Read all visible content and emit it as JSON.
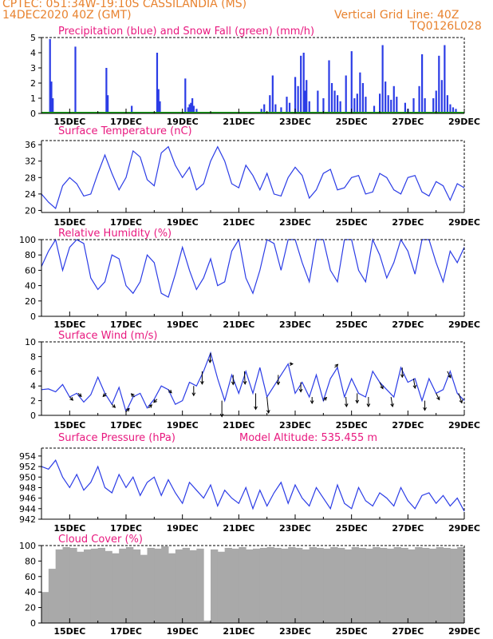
{
  "header": {
    "line1": "CPTEC:   051:34W-19:10S   CASSILANDIA (MS)",
    "line2": "14DEC2020 40Z (GMT)",
    "grid_note": "Vertical Grid Line: 40Z",
    "code": "TQ0126L028"
  },
  "colors": {
    "header": "#e8822e",
    "title": "#e8197f",
    "series": "#2b3ce6",
    "snow": "#1aa01a",
    "cloud": "#a9a9a9",
    "wind_arrow": "#000000"
  },
  "x_axis": {
    "start": "14DEC2020 00Z",
    "end": "29DEC2020 00Z",
    "ticks": [
      "15DEC",
      "17DEC",
      "19DEC",
      "21DEC",
      "23DEC",
      "25DEC",
      "27DEC",
      "29DEC"
    ],
    "tick_days": [
      1,
      3,
      5,
      7,
      9,
      11,
      13,
      15
    ]
  },
  "chart_data": [
    {
      "type": "bar",
      "title": "Precipitation (blue) and Snow Fall (green) (mm/h)",
      "ylim": [
        0,
        5
      ],
      "yticks": [
        0,
        1,
        2,
        3,
        4,
        5
      ],
      "series": [
        {
          "name": "Precipitation",
          "x": [
            0.3,
            0.35,
            0.4,
            1.2,
            2.3,
            2.35,
            3.2,
            4.1,
            4.15,
            4.2,
            5.1,
            5.2,
            5.25,
            5.3,
            5.35,
            5.4,
            5.5,
            7.8,
            7.9,
            8.1,
            8.2,
            8.3,
            8.5,
            8.7,
            8.8,
            9.0,
            9.1,
            9.2,
            9.3,
            9.35,
            9.4,
            9.5,
            9.8,
            10.0,
            10.2,
            10.3,
            10.4,
            10.5,
            10.6,
            10.8,
            11.0,
            11.1,
            11.2,
            11.3,
            11.4,
            11.5,
            11.8,
            12.0,
            12.1,
            12.2,
            12.3,
            12.4,
            12.5,
            12.6,
            12.9,
            13.0,
            13.2,
            13.4,
            13.5,
            13.6,
            13.9,
            14.0,
            14.1,
            14.2,
            14.3,
            14.4,
            14.5,
            14.6,
            14.7
          ],
          "values": [
            4.9,
            2.1,
            1.0,
            4.4,
            3.0,
            1.2,
            0.5,
            4.0,
            1.6,
            0.8,
            2.3,
            0.4,
            0.6,
            0.7,
            1.0,
            0.5,
            0.3,
            0.3,
            0.6,
            1.2,
            2.5,
            0.6,
            0.4,
            1.1,
            0.7,
            2.4,
            1.8,
            3.8,
            4.0,
            1.5,
            2.2,
            0.8,
            1.5,
            1.0,
            3.5,
            2.0,
            1.5,
            1.2,
            0.8,
            2.5,
            4.1,
            1.0,
            1.3,
            2.7,
            2.0,
            1.1,
            0.5,
            1.3,
            4.5,
            2.1,
            1.2,
            0.9,
            1.8,
            1.1,
            0.7,
            0.3,
            1.0,
            1.8,
            3.9,
            1.0,
            1.0,
            1.5,
            3.8,
            2.2,
            4.5,
            1.2,
            0.6,
            0.4,
            0.3
          ]
        },
        {
          "name": "Snow Fall",
          "x": [],
          "values": []
        }
      ]
    },
    {
      "type": "line",
      "title": "Surface Temperature (nC)",
      "ylim": [
        19.5,
        37
      ],
      "yticks": [
        20,
        24,
        28,
        32,
        36
      ],
      "series": [
        {
          "name": "Temperature",
          "x": [
            0,
            0.25,
            0.5,
            0.75,
            1,
            1.25,
            1.5,
            1.75,
            2,
            2.25,
            2.5,
            2.75,
            3,
            3.25,
            3.5,
            3.75,
            4,
            4.25,
            4.5,
            4.75,
            5,
            5.25,
            5.5,
            5.75,
            6,
            6.25,
            6.5,
            6.75,
            7,
            7.25,
            7.5,
            7.75,
            8,
            8.25,
            8.5,
            8.75,
            9,
            9.25,
            9.5,
            9.75,
            10,
            10.25,
            10.5,
            10.75,
            11,
            11.25,
            11.5,
            11.75,
            12,
            12.25,
            12.5,
            12.75,
            13,
            13.25,
            13.5,
            13.75,
            14,
            14.25,
            14.5,
            14.75,
            15
          ],
          "values": [
            24,
            22,
            20.5,
            26,
            28,
            26.5,
            23.5,
            24,
            29,
            33.5,
            29,
            25,
            28,
            34.5,
            33,
            27.5,
            26,
            34,
            35.5,
            31,
            28,
            30.5,
            25,
            26.5,
            32,
            35.5,
            32,
            26.5,
            25.5,
            31,
            28.5,
            25,
            29,
            24,
            23.5,
            28,
            30.5,
            28.5,
            23,
            25,
            29,
            30,
            25,
            25.5,
            28,
            28.5,
            24,
            24.5,
            29,
            28,
            25,
            24,
            28,
            28.5,
            24.5,
            23.5,
            27,
            26,
            22.5,
            26.5,
            25.5
          ]
        }
      ]
    },
    {
      "type": "line",
      "title": "Relative Humidity (%)",
      "ylim": [
        0,
        100
      ],
      "yticks": [
        0,
        20,
        40,
        60,
        80,
        100
      ],
      "series": [
        {
          "name": "Relative Humidity",
          "x": [
            0,
            0.25,
            0.5,
            0.75,
            1,
            1.25,
            1.5,
            1.75,
            2,
            2.25,
            2.5,
            2.75,
            3,
            3.25,
            3.5,
            3.75,
            4,
            4.25,
            4.5,
            4.75,
            5,
            5.25,
            5.5,
            5.75,
            6,
            6.25,
            6.5,
            6.75,
            7,
            7.25,
            7.5,
            7.75,
            8,
            8.25,
            8.5,
            8.75,
            9,
            9.25,
            9.5,
            9.75,
            10,
            10.25,
            10.5,
            10.75,
            11,
            11.25,
            11.5,
            11.75,
            12,
            12.25,
            12.5,
            12.75,
            13,
            13.25,
            13.5,
            13.75,
            14,
            14.25,
            14.5,
            14.75,
            15
          ],
          "values": [
            65,
            85,
            100,
            60,
            90,
            100,
            95,
            50,
            35,
            45,
            80,
            75,
            40,
            30,
            45,
            80,
            70,
            30,
            25,
            55,
            90,
            60,
            35,
            50,
            75,
            40,
            45,
            85,
            100,
            50,
            30,
            60,
            100,
            95,
            60,
            100,
            100,
            70,
            45,
            100,
            100,
            60,
            45,
            100,
            100,
            60,
            45,
            100,
            80,
            50,
            70,
            100,
            85,
            55,
            100,
            100,
            70,
            45,
            85,
            70,
            90
          ]
        }
      ]
    },
    {
      "type": "line",
      "title": "Surface Wind (m/s)",
      "ylim": [
        0,
        10
      ],
      "yticks": [
        0,
        2,
        4,
        6,
        8,
        10
      ],
      "series": [
        {
          "name": "Wind Speed",
          "x": [
            0,
            0.25,
            0.5,
            0.75,
            1,
            1.25,
            1.5,
            1.75,
            2,
            2.25,
            2.5,
            2.75,
            3,
            3.25,
            3.5,
            3.75,
            4,
            4.25,
            4.5,
            4.75,
            5,
            5.25,
            5.5,
            5.75,
            6,
            6.25,
            6.5,
            6.75,
            7,
            7.25,
            7.5,
            7.75,
            8,
            8.25,
            8.5,
            8.75,
            9,
            9.25,
            9.5,
            9.75,
            10,
            10.25,
            10.5,
            10.75,
            11,
            11.25,
            11.5,
            11.75,
            12,
            12.25,
            12.5,
            12.75,
            13,
            13.25,
            13.5,
            13.75,
            14,
            14.25,
            14.5,
            14.75,
            15
          ],
          "values": [
            3.5,
            3.6,
            3.2,
            4.2,
            2.5,
            3.0,
            1.8,
            2.8,
            5.2,
            3.0,
            1.5,
            3.8,
            0.5,
            2.5,
            3.0,
            1.0,
            2.2,
            4.0,
            3.5,
            1.5,
            2.0,
            4.5,
            4.0,
            6.0,
            8.5,
            5.0,
            2.0,
            5.5,
            3.0,
            6.0,
            3.0,
            6.5,
            2.5,
            4.0,
            5.5,
            7.0,
            3.0,
            4.5,
            2.5,
            5.5,
            2.0,
            5.0,
            6.5,
            2.5,
            5.0,
            3.0,
            2.5,
            6.0,
            4.5,
            3.5,
            2.5,
            6.5,
            4.5,
            5.0,
            2.0,
            5.0,
            3.0,
            3.5,
            6.0,
            3.0,
            2.0
          ]
        }
      ],
      "arrows": {
        "x": [
          1.0,
          1.3,
          2.3,
          2.5,
          3.0,
          3.3,
          3.8,
          4.1,
          4.5,
          5.4,
          5.7,
          6.0,
          6.4,
          6.8,
          7.2,
          7.6,
          8.0,
          8.4,
          8.8,
          9.2,
          9.6,
          10.0,
          10.4,
          10.8,
          11.2,
          11.6,
          12.0,
          12.4,
          12.8,
          13.2,
          13.6,
          14.0,
          14.4,
          14.8
        ],
        "u": [
          1,
          1,
          -1,
          1,
          1,
          -1,
          1,
          -1,
          1,
          0,
          0,
          -0.2,
          0,
          0,
          0.2,
          0,
          0.5,
          0,
          1,
          0,
          0,
          1,
          1,
          0.2,
          0,
          0,
          1,
          0.5,
          0,
          0.5,
          0,
          1,
          1,
          1
        ],
        "v": [
          -1,
          -1,
          -1,
          -1,
          1,
          1,
          1,
          -1,
          -1,
          -3,
          -4,
          -3,
          -5,
          -3,
          -4,
          -5,
          -5,
          -3,
          0,
          -3,
          -2,
          1,
          1,
          -3,
          -3,
          -3,
          -2,
          -3,
          -3,
          -3,
          -3,
          -2,
          -2,
          -3
        ]
      }
    },
    {
      "type": "line",
      "title": "Surface Pressure (hPa)",
      "subtitle": "Model Altitude: 535.455 m",
      "ylim": [
        942,
        955.5
      ],
      "yticks": [
        942,
        944,
        946,
        948,
        950,
        952,
        954
      ],
      "series": [
        {
          "name": "Pressure",
          "x": [
            0,
            0.25,
            0.5,
            0.75,
            1,
            1.25,
            1.5,
            1.75,
            2,
            2.25,
            2.5,
            2.75,
            3,
            3.25,
            3.5,
            3.75,
            4,
            4.25,
            4.5,
            4.75,
            5,
            5.25,
            5.5,
            5.75,
            6,
            6.25,
            6.5,
            6.75,
            7,
            7.25,
            7.5,
            7.75,
            8,
            8.25,
            8.5,
            8.75,
            9,
            9.25,
            9.5,
            9.75,
            10,
            10.25,
            10.5,
            10.75,
            11,
            11.25,
            11.5,
            11.75,
            12,
            12.25,
            12.5,
            12.75,
            13,
            13.25,
            13.5,
            13.75,
            14,
            14.25,
            14.5,
            14.75,
            15
          ],
          "values": [
            952,
            951.5,
            953.2,
            950,
            948,
            950.5,
            947.5,
            949,
            952,
            948,
            947,
            950.5,
            948,
            950,
            946.5,
            949,
            950,
            946.5,
            949.5,
            947,
            945,
            949,
            947.5,
            946,
            948.5,
            944.5,
            947.5,
            946,
            945,
            948,
            944,
            947.5,
            944.5,
            947,
            949,
            945,
            948.5,
            946,
            944.5,
            948,
            946,
            944,
            948.5,
            945,
            944,
            948,
            945.5,
            944.5,
            947,
            946,
            944.5,
            948,
            945.5,
            944,
            946.5,
            947,
            945,
            946.5,
            944.5,
            946,
            943.5
          ]
        }
      ]
    },
    {
      "type": "bar",
      "title": "Cloud Cover (%)",
      "ylim": [
        0,
        100
      ],
      "yticks": [
        0,
        20,
        40,
        60,
        80,
        100
      ],
      "series": [
        {
          "name": "Cloud Cover",
          "x": [
            0,
            0.25,
            0.5,
            0.75,
            1,
            1.25,
            1.5,
            1.75,
            2,
            2.25,
            2.5,
            2.75,
            3,
            3.25,
            3.5,
            3.75,
            4,
            4.25,
            4.5,
            4.75,
            5,
            5.25,
            5.5,
            5.75,
            6,
            6.25,
            6.5,
            6.75,
            7,
            7.25,
            7.5,
            7.75,
            8,
            8.25,
            8.5,
            8.75,
            9,
            9.25,
            9.5,
            9.75,
            10,
            10.25,
            10.5,
            10.75,
            11,
            11.25,
            11.5,
            11.75,
            12,
            12.25,
            12.5,
            12.75,
            13,
            13.25,
            13.5,
            13.75,
            14,
            14.25,
            14.5,
            14.75
          ],
          "values": [
            40,
            70,
            95,
            98,
            97,
            92,
            95,
            96,
            97,
            93,
            90,
            96,
            98,
            95,
            88,
            97,
            96,
            99,
            90,
            95,
            97,
            94,
            96,
            3,
            95,
            92,
            97,
            96,
            98,
            95,
            96,
            97,
            98,
            97,
            96,
            98,
            97,
            95,
            98,
            97,
            96,
            98,
            97,
            95,
            98,
            97,
            96,
            98,
            97,
            96,
            98,
            97,
            95,
            98,
            97,
            96,
            98,
            97,
            96,
            98
          ]
        }
      ]
    }
  ]
}
